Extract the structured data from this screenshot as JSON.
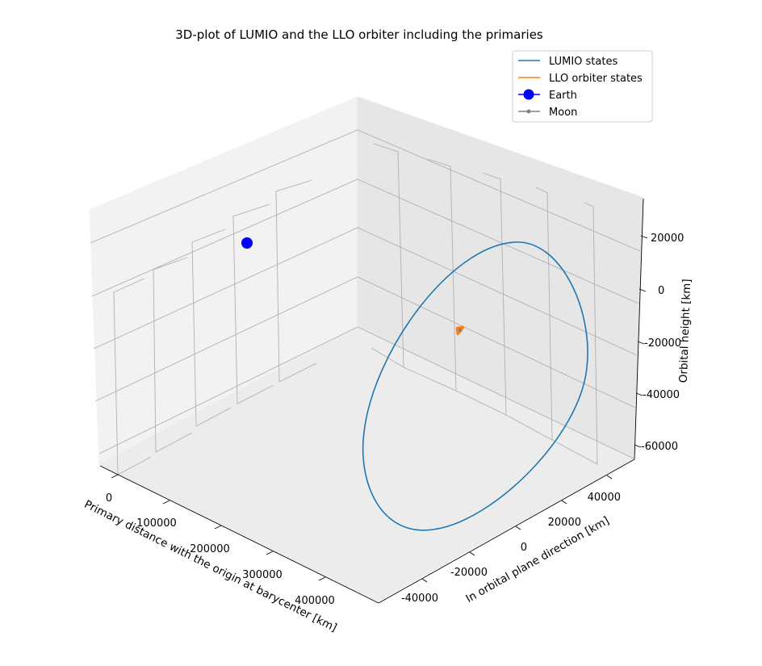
{
  "chart_data": {
    "type": "line",
    "projection": "3d",
    "title": "3D-plot of LUMIO and the LLO orbiter including the primaries",
    "xlabel": "Primary distance with the origin at barycenter [km]",
    "ylabel": "In orbital plane direction [km]",
    "zlabel": "Orbital height [km]",
    "x_ticks": [
      "0",
      "100000",
      "200000",
      "300000",
      "400000"
    ],
    "y_ticks": [
      "-40000",
      "-20000",
      "0",
      "20000",
      "40000"
    ],
    "z_ticks": [
      "-60000",
      "-40000",
      "-20000",
      "0",
      "20000"
    ],
    "grid": true,
    "legend_position": "top-right",
    "series": [
      {
        "name": "LUMIO states",
        "color": "#1f77b4",
        "kind": "line",
        "shape": "closed halo-like orbit around the Moon",
        "approx_center_km": [
          445000,
          0,
          -20000
        ]
      },
      {
        "name": "LLO orbiter states",
        "color": "#ff7f0e",
        "kind": "line",
        "shape": "small low lunar orbit near the Moon",
        "approx_center_km": [
          380000,
          0,
          0
        ]
      },
      {
        "name": "Earth",
        "color": "#0000ff",
        "kind": "marker",
        "marker": "large circle",
        "position_km": [
          -4700,
          0,
          0
        ]
      },
      {
        "name": "Moon",
        "color": "#808080",
        "kind": "marker",
        "marker": "small circle",
        "position_km": [
          380000,
          0,
          0
        ]
      }
    ]
  }
}
